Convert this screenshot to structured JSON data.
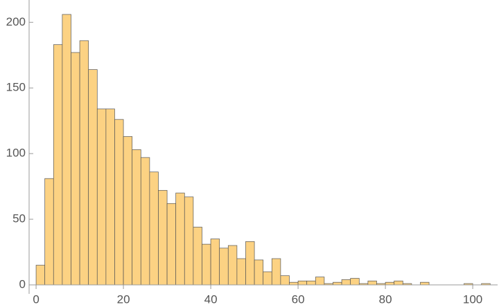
{
  "chart_data": {
    "type": "histogram",
    "bins": [
      0,
      2,
      4,
      6,
      8,
      10,
      12,
      14,
      16,
      18,
      20,
      22,
      24,
      26,
      28,
      30,
      32,
      34,
      36,
      38,
      40,
      42,
      44,
      46,
      48,
      50,
      52,
      54,
      56,
      58,
      60,
      62,
      64,
      66,
      68,
      70,
      72,
      74,
      76,
      78,
      80,
      82,
      84,
      86,
      88,
      90,
      92,
      94,
      96,
      98,
      100,
      102,
      104
    ],
    "values": [
      15,
      81,
      183,
      206,
      177,
      186,
      164,
      134,
      134,
      126,
      113,
      103,
      97,
      86,
      72,
      62,
      70,
      67,
      44,
      31,
      35,
      28,
      30,
      20,
      33,
      19,
      10,
      20,
      7,
      2,
      3,
      3,
      6,
      1,
      2,
      4,
      5,
      1,
      3,
      1,
      2,
      3,
      1,
      0,
      2,
      0,
      0,
      0,
      0,
      1,
      0,
      1
    ],
    "color": "#fcd283",
    "xlim": [
      -1.6,
      105.7
    ],
    "xticks": [
      0,
      20,
      40,
      60,
      80,
      100
    ],
    "ylim": [
      0,
      217
    ],
    "yticks": [
      0,
      50,
      100,
      150,
      200
    ]
  }
}
